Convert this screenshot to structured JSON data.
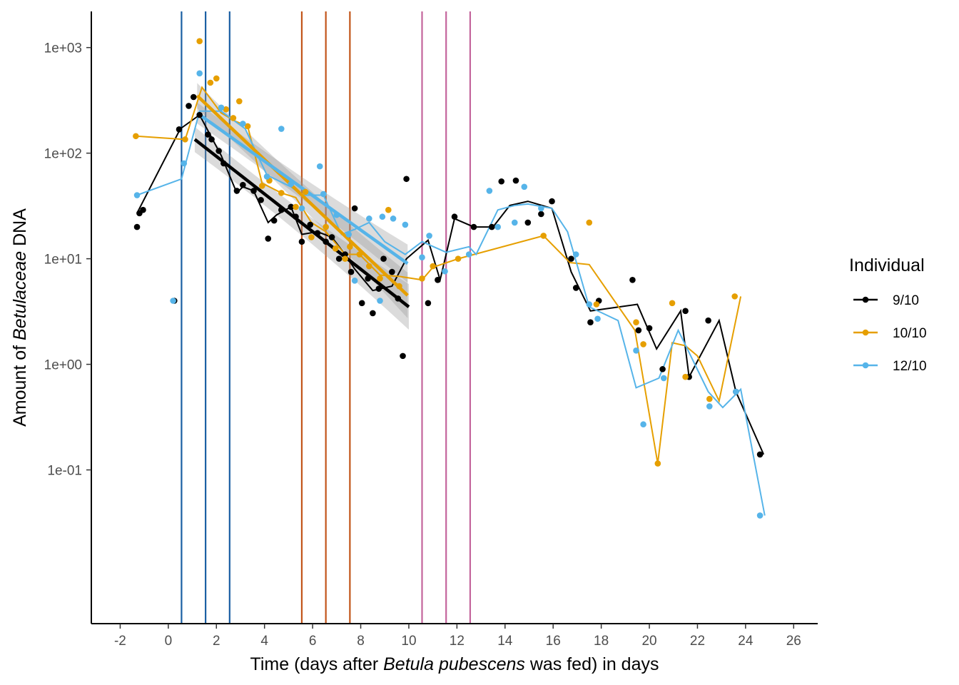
{
  "chart_data": {
    "type": "scatter",
    "x_scale": "linear",
    "y_scale": "log10",
    "xlim": [
      -3.2,
      27.0
    ],
    "ylim": [
      0.0035,
      2200
    ],
    "x_ticks": [
      -2,
      0,
      2,
      4,
      6,
      8,
      10,
      12,
      14,
      16,
      18,
      20,
      22,
      24,
      26
    ],
    "x_tick_labels": [
      "-2",
      "0",
      "2",
      "4",
      "6",
      "8",
      "10",
      "12",
      "14",
      "16",
      "18",
      "20",
      "22",
      "24",
      "26"
    ],
    "y_ticks": [
      0.1,
      1,
      10,
      100,
      1000
    ],
    "y_tick_labels": [
      "1e-01",
      "1e+00",
      "1e+01",
      "1e+02",
      "1e+03"
    ],
    "xlabel": {
      "prefix": "Time (days after ",
      "italic": "Betula pubescens",
      "suffix": " was fed) in days"
    },
    "ylabel": {
      "prefix": "Amount of ",
      "italic": "Betulaceae",
      "suffix": " DNA"
    },
    "grid": false,
    "legend": {
      "title": "Individual",
      "position": "right"
    },
    "vlines": [
      {
        "x": 0.55,
        "color": "#1a5fa3"
      },
      {
        "x": 1.55,
        "color": "#1a5fa3"
      },
      {
        "x": 2.55,
        "color": "#1a5fa3"
      },
      {
        "x": 5.55,
        "color": "#c2551a"
      },
      {
        "x": 6.55,
        "color": "#c2551a"
      },
      {
        "x": 7.55,
        "color": "#c2551a"
      },
      {
        "x": 10.55,
        "color": "#c4659c"
      },
      {
        "x": 11.55,
        "color": "#c4659c"
      },
      {
        "x": 12.55,
        "color": "#c4659c"
      }
    ],
    "series": [
      {
        "name": "9/10",
        "color": "#000000",
        "points": [
          [
            -1.3,
            20
          ],
          [
            -1.2,
            27
          ],
          [
            -1.05,
            29
          ],
          [
            0.25,
            4.0
          ],
          [
            0.45,
            168
          ],
          [
            0.85,
            280
          ],
          [
            1.05,
            340
          ],
          [
            1.3,
            230
          ],
          [
            1.65,
            150
          ],
          [
            1.8,
            135
          ],
          [
            2.1,
            105
          ],
          [
            2.3,
            80
          ],
          [
            2.85,
            44
          ],
          [
            3.1,
            50
          ],
          [
            3.55,
            44
          ],
          [
            3.85,
            36
          ],
          [
            4.15,
            15.5
          ],
          [
            4.4,
            23
          ],
          [
            4.7,
            29
          ],
          [
            5.1,
            31
          ],
          [
            5.3,
            25
          ],
          [
            5.55,
            14.5
          ],
          [
            5.9,
            21
          ],
          [
            6.2,
            17.5
          ],
          [
            6.55,
            14.5
          ],
          [
            6.8,
            16
          ],
          [
            7.1,
            10
          ],
          [
            7.35,
            11
          ],
          [
            7.6,
            7.5
          ],
          [
            7.75,
            30
          ],
          [
            8.05,
            3.8
          ],
          [
            8.3,
            6.5
          ],
          [
            8.5,
            3.05
          ],
          [
            8.75,
            5.2
          ],
          [
            8.95,
            10
          ],
          [
            9.3,
            7.5
          ],
          [
            9.55,
            4.2
          ],
          [
            9.75,
            1.2
          ],
          [
            9.9,
            57
          ],
          [
            10.8,
            3.8
          ],
          [
            11.2,
            6.3
          ],
          [
            11.9,
            25
          ],
          [
            12.7,
            20
          ],
          [
            13.45,
            20
          ],
          [
            13.85,
            54
          ],
          [
            14.45,
            55
          ],
          [
            14.95,
            22
          ],
          [
            15.5,
            26.5
          ],
          [
            15.95,
            35
          ],
          [
            16.75,
            10
          ],
          [
            16.95,
            5.3
          ],
          [
            17.55,
            2.5
          ],
          [
            17.9,
            4.0
          ],
          [
            19.3,
            6.3
          ],
          [
            19.55,
            2.1
          ],
          [
            20.0,
            2.2
          ],
          [
            20.55,
            0.9
          ],
          [
            21.5,
            3.2
          ],
          [
            21.65,
            0.76
          ],
          [
            22.45,
            2.6
          ],
          [
            23.6,
            0.55
          ],
          [
            24.6,
            0.14
          ]
        ],
        "line": [
          [
            -1.3,
            27
          ],
          [
            0.5,
            170
          ],
          [
            1.3,
            230
          ],
          [
            2.2,
            95
          ],
          [
            2.85,
            42
          ],
          [
            3.1,
            48
          ],
          [
            3.55,
            44
          ],
          [
            4.15,
            22
          ],
          [
            4.5,
            26
          ],
          [
            5.1,
            31
          ],
          [
            5.55,
            17
          ],
          [
            6.2,
            18
          ],
          [
            6.8,
            16
          ],
          [
            7.35,
            11
          ],
          [
            7.75,
            8
          ],
          [
            8.5,
            5
          ],
          [
            9.3,
            5.5
          ],
          [
            9.9,
            10
          ],
          [
            10.8,
            15
          ],
          [
            11.3,
            6.3
          ],
          [
            11.9,
            24
          ],
          [
            12.7,
            20
          ],
          [
            13.5,
            20
          ],
          [
            14.2,
            32
          ],
          [
            14.95,
            35
          ],
          [
            15.95,
            30
          ],
          [
            16.75,
            7.5
          ],
          [
            17.55,
            3.2
          ],
          [
            19.5,
            3.7
          ],
          [
            20.3,
            1.4
          ],
          [
            21.3,
            3.2
          ],
          [
            21.65,
            0.76
          ],
          [
            22.9,
            2.6
          ],
          [
            23.6,
            0.55
          ],
          [
            24.75,
            0.14
          ]
        ],
        "trend": {
          "from": [
            1.1,
            135
          ],
          "to": [
            10.0,
            3.5
          ],
          "band": 0.12
        }
      },
      {
        "name": "10/10",
        "color": "#e69f00",
        "points": [
          [
            -1.35,
            145
          ],
          [
            0.7,
            135
          ],
          [
            1.3,
            1150
          ],
          [
            1.75,
            465
          ],
          [
            2.0,
            510
          ],
          [
            2.4,
            260
          ],
          [
            2.7,
            215
          ],
          [
            2.95,
            310
          ],
          [
            3.3,
            180
          ],
          [
            3.9,
            49
          ],
          [
            4.2,
            55
          ],
          [
            4.7,
            42
          ],
          [
            5.3,
            31
          ],
          [
            5.7,
            43
          ],
          [
            5.95,
            16
          ],
          [
            6.55,
            20
          ],
          [
            6.95,
            12.5
          ],
          [
            7.35,
            10
          ],
          [
            7.55,
            13
          ],
          [
            7.95,
            11
          ],
          [
            8.35,
            8.5
          ],
          [
            8.8,
            6.5
          ],
          [
            9.15,
            29
          ],
          [
            9.6,
            5.5
          ],
          [
            10.55,
            6.5
          ],
          [
            11.0,
            8.5
          ],
          [
            12.05,
            10
          ],
          [
            15.6,
            16.5
          ],
          [
            17.5,
            22
          ],
          [
            17.8,
            3.7
          ],
          [
            19.45,
            2.5
          ],
          [
            19.75,
            1.55
          ],
          [
            20.35,
            0.115
          ],
          [
            20.95,
            3.8
          ],
          [
            21.5,
            0.76
          ],
          [
            22.5,
            0.47
          ],
          [
            23.55,
            4.4
          ]
        ],
        "line": [
          [
            -1.35,
            145
          ],
          [
            0.7,
            135
          ],
          [
            1.4,
            420
          ],
          [
            2.2,
            240
          ],
          [
            2.8,
            200
          ],
          [
            3.3,
            180
          ],
          [
            3.9,
            52
          ],
          [
            4.7,
            42
          ],
          [
            5.3,
            38
          ],
          [
            5.95,
            22
          ],
          [
            6.55,
            18
          ],
          [
            7.35,
            11
          ],
          [
            7.95,
            11
          ],
          [
            8.8,
            7
          ],
          [
            9.6,
            6.8
          ],
          [
            10.55,
            6.3
          ],
          [
            11.0,
            8.3
          ],
          [
            12.05,
            10
          ],
          [
            15.6,
            16.5
          ],
          [
            16.7,
            9.2
          ],
          [
            17.5,
            8.8
          ],
          [
            19.4,
            2.1
          ],
          [
            20.35,
            0.115
          ],
          [
            20.95,
            1.6
          ],
          [
            21.5,
            1.5
          ],
          [
            22.0,
            1.2
          ],
          [
            22.9,
            0.45
          ],
          [
            23.8,
            4.4
          ]
        ],
        "trend": {
          "from": [
            1.2,
            350
          ],
          "to": [
            9.95,
            4.5
          ],
          "band": 0.12
        }
      },
      {
        "name": "12/10",
        "color": "#56b4e9",
        "points": [
          [
            -1.3,
            40
          ],
          [
            0.2,
            4.0
          ],
          [
            0.65,
            80
          ],
          [
            1.3,
            570
          ],
          [
            2.2,
            270
          ],
          [
            3.1,
            190
          ],
          [
            4.1,
            60
          ],
          [
            4.7,
            170
          ],
          [
            5.1,
            51
          ],
          [
            5.55,
            30
          ],
          [
            6.3,
            75
          ],
          [
            6.45,
            41
          ],
          [
            7.0,
            26
          ],
          [
            7.5,
            17
          ],
          [
            7.75,
            6.2
          ],
          [
            8.35,
            24
          ],
          [
            8.8,
            4.0
          ],
          [
            8.9,
            25
          ],
          [
            9.35,
            24
          ],
          [
            9.85,
            21
          ],
          [
            10.55,
            10.3
          ],
          [
            10.85,
            16.5
          ],
          [
            11.5,
            7.6
          ],
          [
            12.5,
            11
          ],
          [
            13.35,
            44
          ],
          [
            13.7,
            20
          ],
          [
            14.4,
            22
          ],
          [
            14.8,
            48
          ],
          [
            15.5,
            30
          ],
          [
            16.95,
            11
          ],
          [
            17.5,
            3.7
          ],
          [
            17.85,
            2.7
          ],
          [
            19.45,
            1.35
          ],
          [
            19.75,
            0.27
          ],
          [
            20.6,
            0.74
          ],
          [
            22.5,
            0.4
          ],
          [
            23.6,
            0.55
          ],
          [
            24.6,
            0.037
          ]
        ],
        "line": [
          [
            -1.3,
            40
          ],
          [
            0.55,
            57
          ],
          [
            1.3,
            250
          ],
          [
            2.2,
            250
          ],
          [
            3.2,
            170
          ],
          [
            4.1,
            62
          ],
          [
            5.1,
            48
          ],
          [
            5.55,
            40
          ],
          [
            6.45,
            40
          ],
          [
            7.2,
            17
          ],
          [
            7.75,
            19
          ],
          [
            8.35,
            22
          ],
          [
            9.0,
            14.5
          ],
          [
            9.85,
            11
          ],
          [
            10.55,
            14.5
          ],
          [
            11.55,
            11.5
          ],
          [
            12.5,
            13
          ],
          [
            12.8,
            11
          ],
          [
            13.7,
            29
          ],
          [
            14.4,
            32
          ],
          [
            14.95,
            33
          ],
          [
            15.95,
            30
          ],
          [
            16.6,
            18
          ],
          [
            17.5,
            3.5
          ],
          [
            18.7,
            2.6
          ],
          [
            19.45,
            0.6
          ],
          [
            20.4,
            0.74
          ],
          [
            21.2,
            2.1
          ],
          [
            22.45,
            0.55
          ],
          [
            23.05,
            0.39
          ],
          [
            23.8,
            0.58
          ],
          [
            24.8,
            0.037
          ]
        ],
        "trend": {
          "from": [
            1.2,
            240
          ],
          "to": [
            9.95,
            9
          ],
          "band": 0.1
        }
      }
    ]
  }
}
